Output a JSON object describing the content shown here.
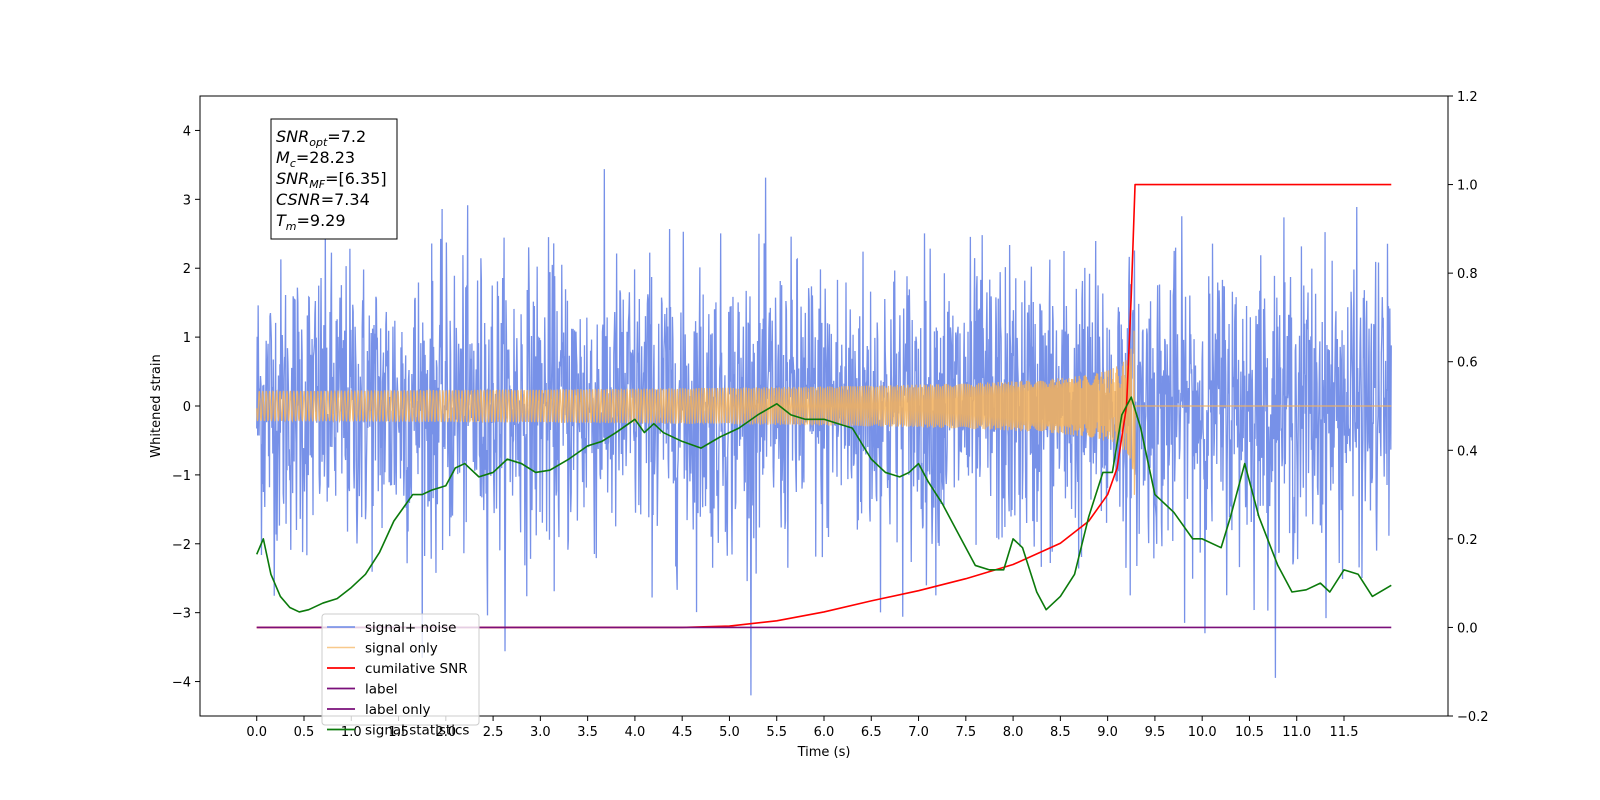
{
  "chart_data": {
    "type": "line",
    "title": "",
    "xlabel": "Time (s)",
    "ylabel": "Whitened strain",
    "xlim": [
      -0.6,
      12.6
    ],
    "ylim_left": [
      -4.5,
      4.5
    ],
    "ylim_right": [
      -0.2,
      1.2
    ],
    "x_ticks": [
      0.0,
      0.5,
      1.0,
      1.5,
      2.0,
      2.5,
      3.0,
      3.5,
      4.0,
      4.5,
      5.0,
      5.5,
      6.0,
      6.5,
      7.0,
      7.5,
      8.0,
      8.5,
      9.0,
      9.5,
      10.0,
      10.5,
      11.0,
      11.5
    ],
    "x_tick_labels": [
      "0.0",
      "0.5",
      "1.0",
      "1.5",
      "2.0",
      "2.5",
      "3.0",
      "3.5",
      "4.0",
      "4.5",
      "5.0",
      "5.5",
      "6.0",
      "6.5",
      "7.0",
      "7.5",
      "8.0",
      "8.5",
      "9.0",
      "9.5",
      "10.0",
      "10.5",
      "11.0",
      "11.5"
    ],
    "y_ticks_left": [
      -4,
      -3,
      -2,
      -1,
      0,
      1,
      2,
      3,
      4
    ],
    "y_tick_labels_left": [
      "−4",
      "−3",
      "−2",
      "−1",
      "0",
      "1",
      "2",
      "3",
      "4"
    ],
    "y_ticks_right": [
      -0.2,
      0.0,
      0.2,
      0.4,
      0.6,
      0.8,
      1.0,
      1.2
    ],
    "y_tick_labels_right": [
      "−0.2",
      "0.0",
      "0.2",
      "0.4",
      "0.6",
      "0.8",
      "1.0",
      "1.2"
    ],
    "grid": false,
    "legend_position": "bottom-left",
    "annotation": {
      "lines": [
        {
          "base": "SNR",
          "sub": "opt",
          "rest": "=7.2"
        },
        {
          "base": "M",
          "sub": "c",
          "rest": "=28.23"
        },
        {
          "base": "SNR",
          "sub": "MF",
          "rest": "=[6.35]"
        },
        {
          "base": "CSNR",
          "sub": "",
          "rest": "=7.34"
        },
        {
          "base": "T",
          "sub": "m",
          "rest": "=9.29"
        }
      ]
    },
    "series": [
      {
        "name": "signal+ noise",
        "axis": "left",
        "color": "#6b88e6",
        "noise_std": 1.05,
        "x_range": [
          0.0,
          12.0
        ]
      },
      {
        "name": "signal only",
        "axis": "left",
        "color": "#f5b25a",
        "chirp_merger_time": 9.29,
        "chirp_peak_amplitude": 1.6
      },
      {
        "name": "cumilative SNR",
        "axis": "right",
        "color": "#ff0000",
        "x": [
          0.0,
          4.5,
          5.0,
          5.5,
          6.0,
          6.5,
          7.0,
          7.5,
          8.0,
          8.5,
          8.8,
          9.0,
          9.1,
          9.2,
          9.25,
          9.29,
          9.3,
          12.0
        ],
        "values": [
          0.0,
          0.0,
          0.003,
          0.015,
          0.035,
          0.06,
          0.083,
          0.11,
          0.142,
          0.19,
          0.24,
          0.3,
          0.36,
          0.5,
          0.75,
          1.0,
          1.0,
          1.0
        ]
      },
      {
        "name": "label",
        "axis": "right",
        "color": "#7a0f7a",
        "x": [
          0.0,
          12.0
        ],
        "values": [
          0.0,
          0.0
        ]
      },
      {
        "name": "label only",
        "axis": "right",
        "color": "#7a0f7a",
        "x": [],
        "values": []
      },
      {
        "name": "signal statistics",
        "axis": "right",
        "color": "#0b7a0b",
        "x": [
          0.0,
          0.07,
          0.15,
          0.25,
          0.35,
          0.45,
          0.55,
          0.7,
          0.85,
          1.0,
          1.15,
          1.3,
          1.45,
          1.55,
          1.65,
          1.75,
          1.85,
          2.0,
          2.1,
          2.2,
          2.35,
          2.5,
          2.65,
          2.8,
          2.95,
          3.1,
          3.3,
          3.5,
          3.65,
          3.8,
          4.0,
          4.1,
          4.2,
          4.3,
          4.5,
          4.7,
          4.9,
          5.1,
          5.3,
          5.5,
          5.65,
          5.8,
          6.0,
          6.15,
          6.3,
          6.5,
          6.65,
          6.8,
          6.9,
          7.0,
          7.1,
          7.25,
          7.45,
          7.6,
          7.75,
          7.9,
          8.0,
          8.1,
          8.25,
          8.35,
          8.5,
          8.65,
          8.8,
          8.95,
          9.05,
          9.15,
          9.25,
          9.35,
          9.5,
          9.7,
          9.9,
          10.0,
          10.2,
          10.3,
          10.45,
          10.6,
          10.8,
          10.95,
          11.1,
          11.25,
          11.35,
          11.5,
          11.65,
          11.8,
          12.0
        ],
        "values": [
          0.165,
          0.2,
          0.12,
          0.07,
          0.045,
          0.035,
          0.04,
          0.055,
          0.065,
          0.09,
          0.12,
          0.17,
          0.24,
          0.27,
          0.3,
          0.3,
          0.31,
          0.32,
          0.36,
          0.37,
          0.34,
          0.35,
          0.38,
          0.37,
          0.35,
          0.355,
          0.38,
          0.41,
          0.42,
          0.44,
          0.47,
          0.44,
          0.46,
          0.44,
          0.42,
          0.405,
          0.43,
          0.45,
          0.48,
          0.505,
          0.48,
          0.47,
          0.47,
          0.46,
          0.45,
          0.38,
          0.35,
          0.34,
          0.35,
          0.37,
          0.33,
          0.28,
          0.2,
          0.14,
          0.13,
          0.13,
          0.2,
          0.18,
          0.08,
          0.04,
          0.07,
          0.12,
          0.25,
          0.35,
          0.35,
          0.48,
          0.52,
          0.45,
          0.3,
          0.26,
          0.2,
          0.2,
          0.18,
          0.25,
          0.37,
          0.25,
          0.14,
          0.08,
          0.085,
          0.1,
          0.08,
          0.13,
          0.12,
          0.07,
          0.095
        ]
      }
    ]
  }
}
